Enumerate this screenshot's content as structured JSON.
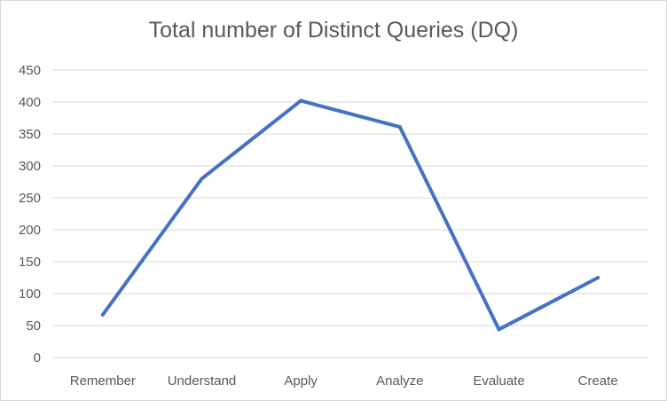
{
  "chart_data": {
    "type": "line",
    "title": "Total number of Distinct Queries (DQ)",
    "xlabel": "",
    "ylabel": "",
    "categories": [
      "Remember",
      "Understand",
      "Apply",
      "Analyze",
      "Evaluate",
      "Create"
    ],
    "series": [
      {
        "values": [
          67,
          280,
          402,
          361,
          44,
          125
        ]
      }
    ],
    "ylim": [
      0,
      450
    ],
    "yticks": [
      "0",
      "50",
      "100",
      "150",
      "200",
      "250",
      "300",
      "350",
      "400",
      "450"
    ],
    "grid": true,
    "legend": "none",
    "colors": {
      "line": "#4472c4",
      "grid": "#d9d9d9",
      "text": "#595959"
    }
  }
}
